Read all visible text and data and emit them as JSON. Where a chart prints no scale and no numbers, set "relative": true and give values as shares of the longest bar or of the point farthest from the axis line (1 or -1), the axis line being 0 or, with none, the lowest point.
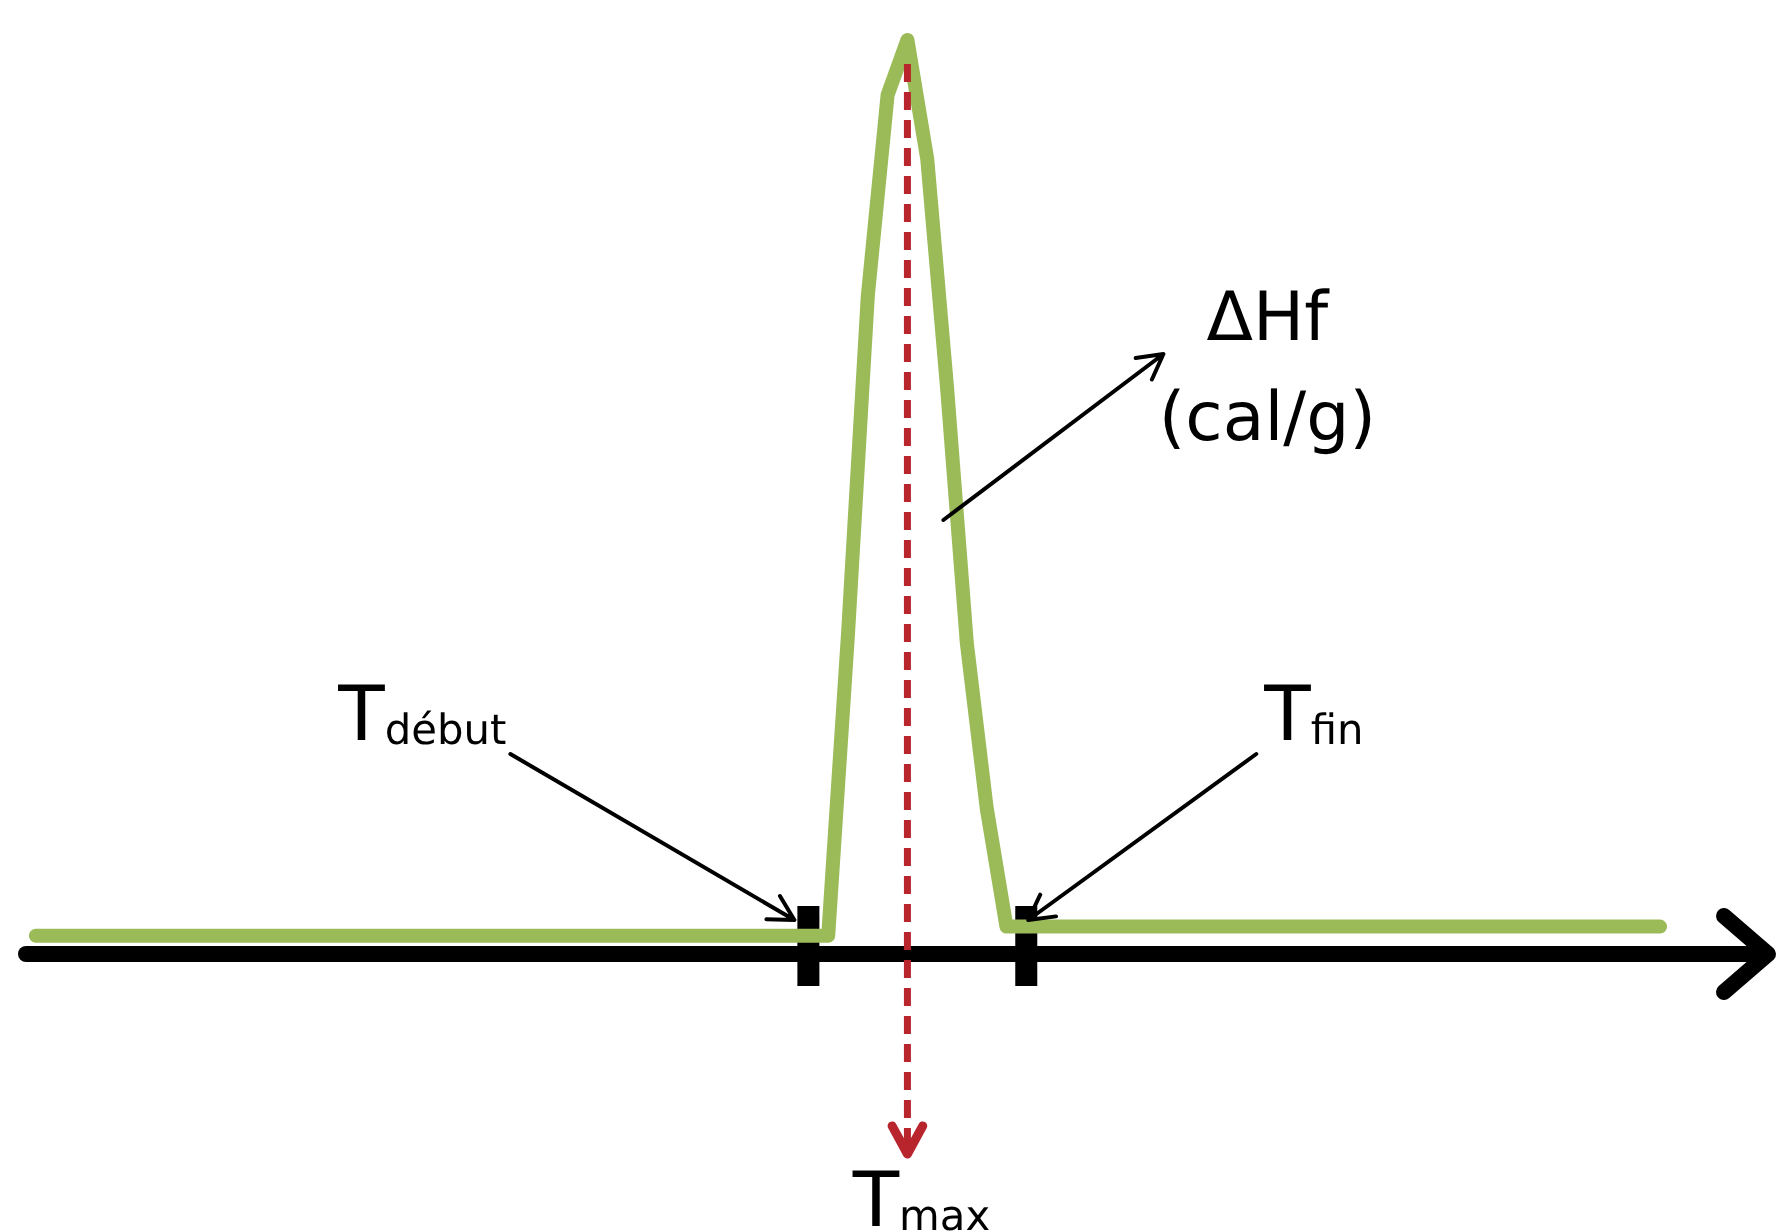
{
  "chart_data": {
    "type": "line",
    "relative": true,
    "categories": [
      null,
      null,
      null,
      null,
      null,
      null,
      null,
      null,
      null,
      null,
      null,
      null,
      null,
      null,
      null,
      null,
      null,
      null,
      null,
      null,
      null,
      null,
      null,
      null,
      null,
      null,
      null,
      null,
      null,
      null,
      null,
      null,
      null,
      null,
      null,
      null,
      null,
      null,
      null,
      null,
      null,
      null,
      null,
      null,
      null,
      null,
      null,
      null,
      null,
      null,
      null,
      null,
      null,
      null,
      null,
      null,
      null,
      null,
      null,
      null,
      null,
      null,
      null,
      null,
      null,
      null,
      null,
      null,
      null,
      null,
      null,
      null,
      null,
      null,
      null,
      null,
      null,
      null,
      null,
      null,
      null,
      null,
      null
    ],
    "series": [
      {
        "color": "#9bbb59",
        "values": [
          0.02,
          0.02,
          0.02,
          0.02,
          0.02,
          0.02,
          0.02,
          0.02,
          0.02,
          0.02,
          0.02,
          0.02,
          0.02,
          0.02,
          0.02,
          0.02,
          0.02,
          0.02,
          0.02,
          0.02,
          0.02,
          0.02,
          0.02,
          0.02,
          0.02,
          0.02,
          0.02,
          0.02,
          0.02,
          0.02,
          0.02,
          0.02,
          0.02,
          0.02,
          0.02,
          0.02,
          0.02,
          0.02,
          0.02,
          0.02,
          0.02,
          0.35,
          0.72,
          0.94,
          1,
          0.87,
          0.62,
          0.34,
          0.16,
          0.03,
          0.03,
          0.03,
          0.03,
          0.03,
          0.03,
          0.03,
          0.03,
          0.03,
          0.03,
          0.03,
          0.03,
          0.03,
          0.03,
          0.03,
          0.03,
          0.03,
          0.03,
          0.03,
          0.03,
          0.03,
          0.03,
          0.03,
          0.03,
          0.03,
          0.03,
          0.03,
          0.03,
          0.03,
          0.03,
          0.03,
          0.03,
          0.03,
          0.03
        ]
      }
    ],
    "marker": "none",
    "annotations": [
      "ΔHf (cal/g)",
      "T$_{début}$",
      "T$_{fin}$",
      "T$_{max}$"
    ]
  }
}
